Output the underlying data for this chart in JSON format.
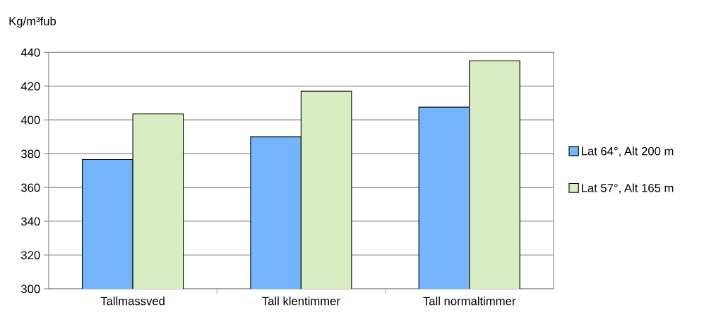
{
  "chart_data": {
    "type": "bar",
    "ylabel": "Kg/m³fub",
    "categories": [
      "Tallmassved",
      "Tall klentimmer",
      "Tall normaltimmer"
    ],
    "series": [
      {
        "name": "Lat 64°, Alt 200 m",
        "color": "#75b5fd",
        "values": [
          376.5,
          390,
          407.5
        ]
      },
      {
        "name": "Lat 57°, Alt 165 m",
        "color": "#d7ecc0",
        "values": [
          403.5,
          417,
          435
        ]
      }
    ],
    "ylim": [
      300,
      440
    ],
    "yticks": [
      300,
      320,
      340,
      360,
      380,
      400,
      420,
      440
    ],
    "grid": "y",
    "legend": "right"
  }
}
